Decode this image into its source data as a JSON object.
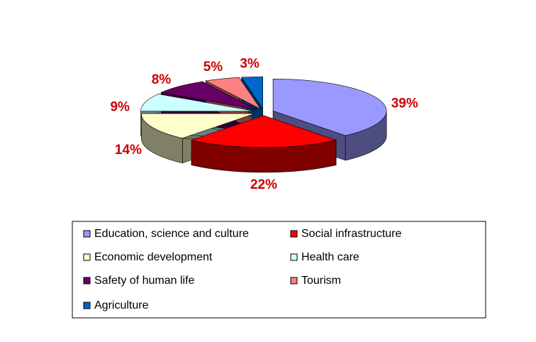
{
  "chart_data": {
    "type": "pie",
    "categories": [
      "Education, science and culture",
      "Social infrastructure",
      "Economic development",
      "Health care",
      "Safety of human life",
      "Tourism",
      "Agriculture"
    ],
    "values": [
      39,
      22,
      14,
      9,
      8,
      5,
      3
    ],
    "value_labels": [
      "39%",
      "22%",
      "14%",
      "9%",
      "8%",
      "5%",
      "3%"
    ],
    "colors": [
      "#9999ff",
      "#ff0000",
      "#ffffcc",
      "#ccffff",
      "#660066",
      "#ff8080",
      "#0066cc"
    ]
  }
}
